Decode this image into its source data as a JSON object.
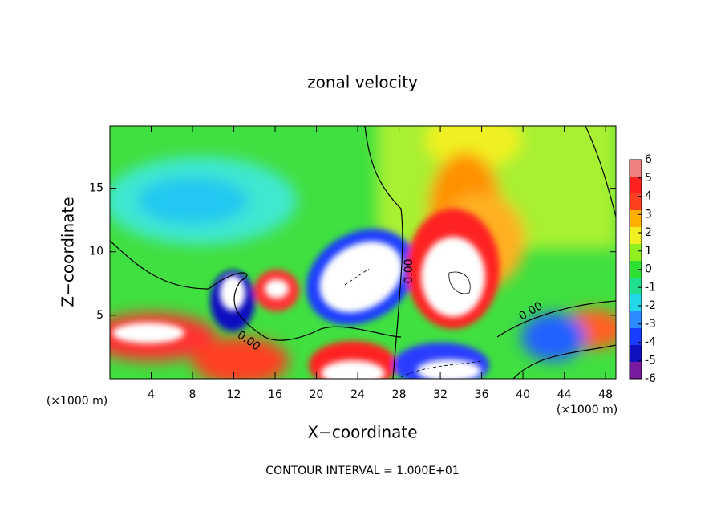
{
  "chart_data": {
    "type": "contour",
    "title": "zonal velocity",
    "x_label": "X−coordinate",
    "y_label": "Z−coordinate",
    "x_unit": "(×1000 m)",
    "y_unit": "(×1000 m)",
    "footer": "CONTOUR INTERVAL = 1.000E+01",
    "xlim": [
      0,
      49
    ],
    "xticks": [
      4,
      8,
      12,
      16,
      20,
      24,
      28,
      32,
      36,
      40,
      44,
      48
    ],
    "ylim": [
      0,
      19.9
    ],
    "yticks": [
      5,
      10,
      15
    ],
    "annotations": [
      "0.00",
      "0.00",
      "0.00"
    ],
    "colorbar": {
      "ticks": [
        -6,
        -5,
        -4,
        -3,
        -2,
        -1,
        0,
        1,
        2,
        3,
        4,
        5,
        6
      ],
      "colors": [
        "#7a1aa0",
        "#1010c0",
        "#1a3cff",
        "#2a8cff",
        "#20d8e8",
        "#20e090",
        "#30e030",
        "#90f020",
        "#f0f020",
        "#ffb000",
        "#ff4020",
        "#ff2020",
        "#f08080"
      ]
    }
  }
}
